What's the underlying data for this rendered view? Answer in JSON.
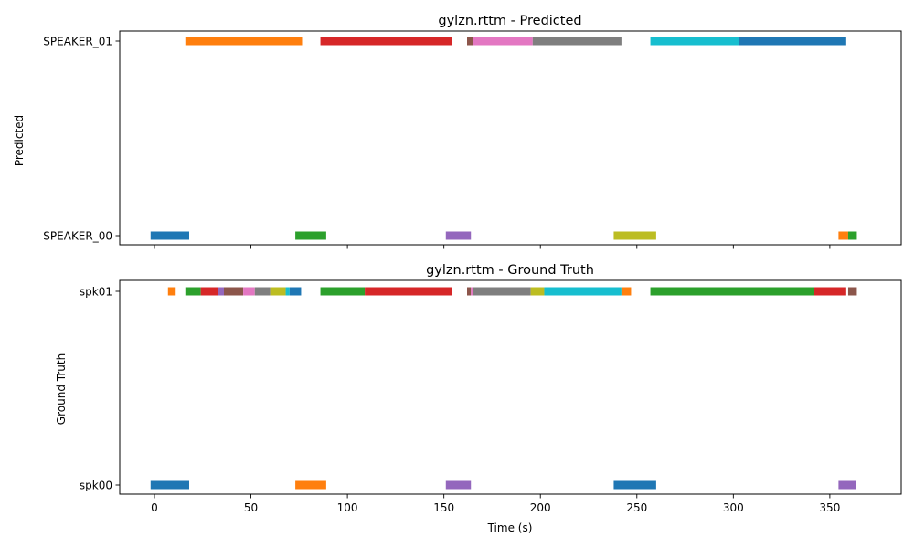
{
  "chart_data": [
    {
      "type": "timeline",
      "title": "gylzn.rttm - Predicted",
      "ylabel": "Predicted",
      "xlabel": "",
      "xlim": [
        -18,
        387
      ],
      "x_ticks": [
        0,
        50,
        100,
        150,
        200,
        250,
        300,
        350
      ],
      "show_x_tick_labels": false,
      "grid": false,
      "rows": [
        "SPEAKER_00",
        "SPEAKER_01"
      ],
      "segments": [
        {
          "row": "SPEAKER_00",
          "start": -2,
          "end": 18,
          "color": "#1f77b4"
        },
        {
          "row": "SPEAKER_01",
          "start": 16,
          "end": 76.5,
          "color": "#ff7f0e"
        },
        {
          "row": "SPEAKER_00",
          "start": 73,
          "end": 89,
          "color": "#2ca02c"
        },
        {
          "row": "SPEAKER_01",
          "start": 86,
          "end": 154,
          "color": "#d62728"
        },
        {
          "row": "SPEAKER_00",
          "start": 151,
          "end": 164,
          "color": "#9467bd"
        },
        {
          "row": "SPEAKER_01",
          "start": 162,
          "end": 165,
          "color": "#8c564b"
        },
        {
          "row": "SPEAKER_01",
          "start": 165,
          "end": 196,
          "color": "#e377c2"
        },
        {
          "row": "SPEAKER_01",
          "start": 196,
          "end": 242,
          "color": "#7f7f7f"
        },
        {
          "row": "SPEAKER_00",
          "start": 238,
          "end": 260,
          "color": "#bcbd22"
        },
        {
          "row": "SPEAKER_01",
          "start": 257,
          "end": 303,
          "color": "#17becf"
        },
        {
          "row": "SPEAKER_01",
          "start": 303,
          "end": 358.5,
          "color": "#1f77b4"
        },
        {
          "row": "SPEAKER_00",
          "start": 354.5,
          "end": 359.5,
          "color": "#ff7f0e"
        },
        {
          "row": "SPEAKER_00",
          "start": 359.5,
          "end": 364,
          "color": "#2ca02c"
        }
      ]
    },
    {
      "type": "timeline",
      "title": "gylzn.rttm - Ground Truth",
      "ylabel": "Ground Truth",
      "xlabel": "Time (s)",
      "xlim": [
        -18,
        387
      ],
      "x_ticks": [
        0,
        50,
        100,
        150,
        200,
        250,
        300,
        350
      ],
      "show_x_tick_labels": true,
      "grid": false,
      "rows": [
        "spk00",
        "spk01"
      ],
      "segments": [
        {
          "row": "spk00",
          "start": -2,
          "end": 18,
          "color": "#1f77b4"
        },
        {
          "row": "spk01",
          "start": 7,
          "end": 11,
          "color": "#ff7f0e"
        },
        {
          "row": "spk01",
          "start": 16,
          "end": 24,
          "color": "#2ca02c"
        },
        {
          "row": "spk01",
          "start": 24,
          "end": 33,
          "color": "#d62728"
        },
        {
          "row": "spk01",
          "start": 33,
          "end": 36,
          "color": "#9467bd"
        },
        {
          "row": "spk01",
          "start": 36,
          "end": 46,
          "color": "#8c564b"
        },
        {
          "row": "spk01",
          "start": 46,
          "end": 52,
          "color": "#e377c2"
        },
        {
          "row": "spk01",
          "start": 52,
          "end": 60,
          "color": "#7f7f7f"
        },
        {
          "row": "spk01",
          "start": 60,
          "end": 68,
          "color": "#bcbd22"
        },
        {
          "row": "spk01",
          "start": 68,
          "end": 70,
          "color": "#17becf"
        },
        {
          "row": "spk01",
          "start": 70,
          "end": 76,
          "color": "#1f77b4"
        },
        {
          "row": "spk00",
          "start": 73,
          "end": 89,
          "color": "#ff7f0e"
        },
        {
          "row": "spk01",
          "start": 86,
          "end": 109,
          "color": "#2ca02c"
        },
        {
          "row": "spk01",
          "start": 109,
          "end": 154,
          "color": "#d62728"
        },
        {
          "row": "spk00",
          "start": 151,
          "end": 164,
          "color": "#9467bd"
        },
        {
          "row": "spk01",
          "start": 162,
          "end": 164,
          "color": "#8c564b"
        },
        {
          "row": "spk01",
          "start": 164,
          "end": 165,
          "color": "#e377c2"
        },
        {
          "row": "spk01",
          "start": 165,
          "end": 195,
          "color": "#7f7f7f"
        },
        {
          "row": "spk01",
          "start": 195,
          "end": 202,
          "color": "#bcbd22"
        },
        {
          "row": "spk01",
          "start": 202,
          "end": 242,
          "color": "#17becf"
        },
        {
          "row": "spk00",
          "start": 238,
          "end": 260,
          "color": "#1f77b4"
        },
        {
          "row": "spk01",
          "start": 242,
          "end": 247,
          "color": "#ff7f0e"
        },
        {
          "row": "spk01",
          "start": 257,
          "end": 342,
          "color": "#2ca02c"
        },
        {
          "row": "spk01",
          "start": 342,
          "end": 358.5,
          "color": "#d62728"
        },
        {
          "row": "spk00",
          "start": 354.5,
          "end": 363.5,
          "color": "#9467bd"
        },
        {
          "row": "spk01",
          "start": 359.5,
          "end": 364,
          "color": "#8c564b"
        }
      ]
    }
  ]
}
